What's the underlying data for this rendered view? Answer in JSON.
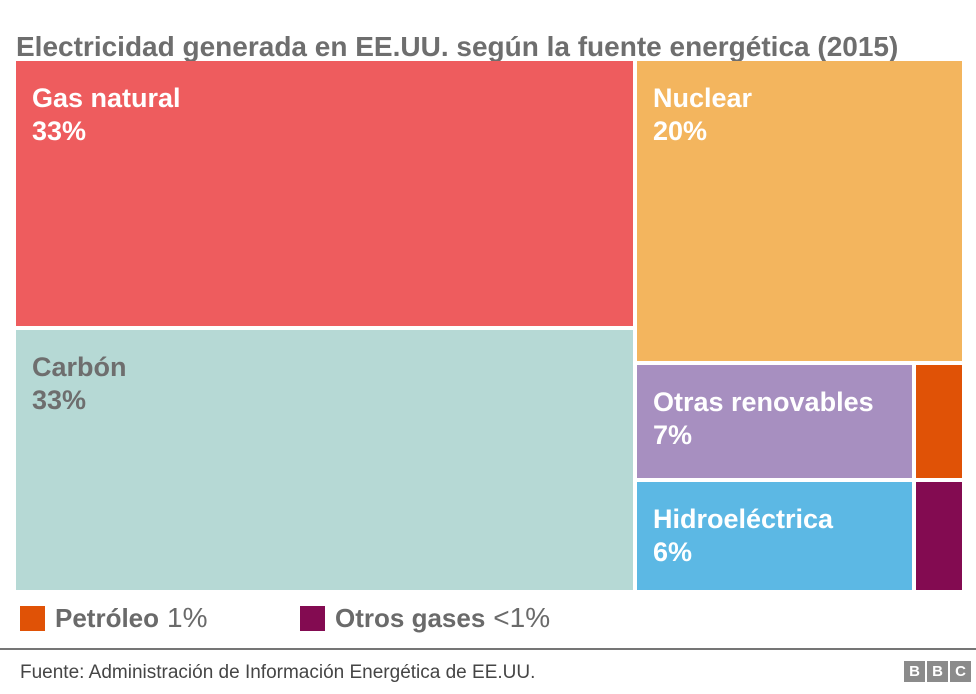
{
  "title": "Electricidad generada en EE.UU. según la fuente energética (2015)",
  "chart_data": {
    "type": "treemap",
    "title": "Electricidad generada en EE.UU. según la fuente energética (2015)",
    "unit": "% de electricidad generada",
    "series": [
      {
        "name": "Gas natural",
        "value": 33,
        "display": "33%",
        "color": "#EE5C5E",
        "text_color": "#FFFFFF"
      },
      {
        "name": "Carbón",
        "value": 33,
        "display": "33%",
        "color": "#B6D9D5",
        "text_color": "#6E6E6E"
      },
      {
        "name": "Nuclear",
        "value": 20,
        "display": "20%",
        "color": "#F3B55E",
        "text_color": "#FFFFFF"
      },
      {
        "name": "Otras renovables",
        "value": 7,
        "display": "7%",
        "color": "#A78FC0",
        "text_color": "#FFFFFF"
      },
      {
        "name": "Hidroeléctrica",
        "value": 6,
        "display": "6%",
        "color": "#5CB8E4",
        "text_color": "#FFFFFF"
      },
      {
        "name": "Petróleo",
        "value": 1,
        "display": "1%",
        "color": "#E05206"
      },
      {
        "name": "Otros gases",
        "value": 0.5,
        "display": "<1%",
        "color": "#830B51"
      }
    ],
    "legend": {
      "position": "bottom",
      "items": [
        {
          "label": "Petróleo",
          "value": "1%",
          "color": "#E05206"
        },
        {
          "label": "Otros gases",
          "value": "<1%",
          "color": "#830B51"
        }
      ]
    }
  },
  "footer": {
    "source": "Fuente: Administración de Información Energética de EE.UU.",
    "logo_letters": [
      "B",
      "B",
      "C"
    ]
  }
}
